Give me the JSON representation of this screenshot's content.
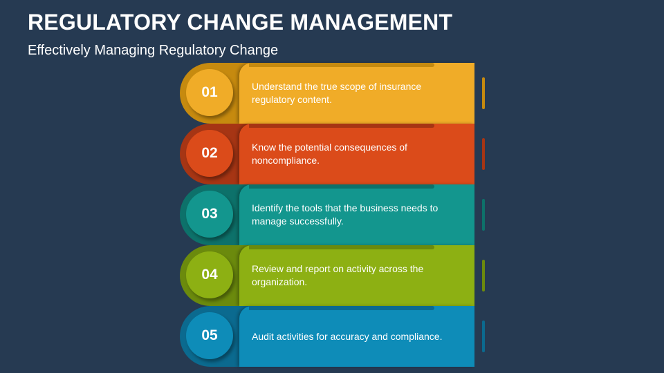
{
  "slide": {
    "title": "REGULATORY CHANGE MANAGEMENT",
    "subtitle": "Effectively Managing Regulatory Change"
  },
  "steps": [
    {
      "number": "01",
      "text": "Understand the true scope of insurance regulatory content.",
      "color": "#f0ac28",
      "dark": "#c68a0f"
    },
    {
      "number": "02",
      "text": "Know the potential consequences of noncompliance.",
      "color": "#db4b1a",
      "dark": "#a63514"
    },
    {
      "number": "03",
      "text": "Identify the tools that the business needs to manage successfully.",
      "color": "#13968e",
      "dark": "#0d716a"
    },
    {
      "number": "04",
      "text": "Review and report on activity across the organization.",
      "color": "#8db013",
      "dark": "#6b8a0d"
    },
    {
      "number": "05",
      "text": "Audit activities for accuracy and compliance.",
      "color": "#0e8cb8",
      "dark": "#0b6a8f"
    }
  ]
}
